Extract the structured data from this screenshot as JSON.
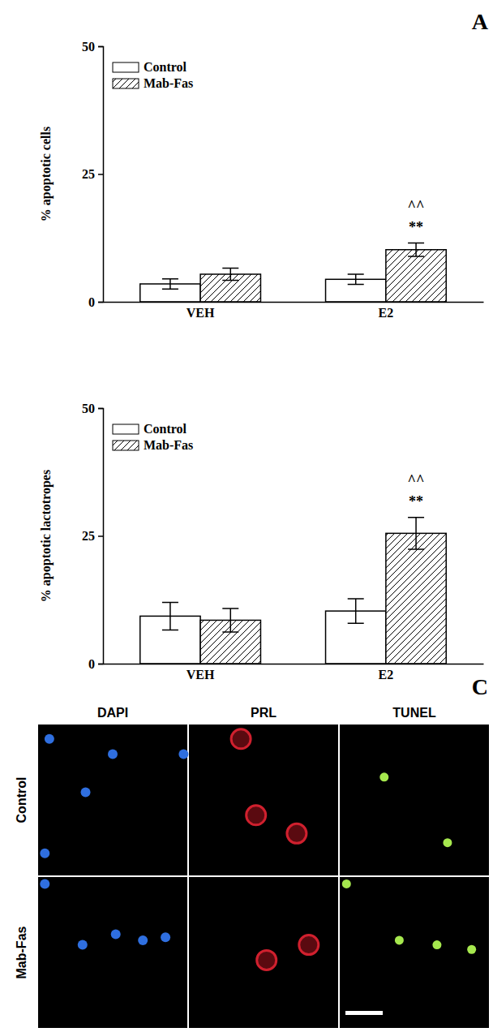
{
  "chart_data": [
    {
      "type": "bar",
      "y_label": "% apoptotic cells",
      "categories": [
        "VEH",
        "E2"
      ],
      "ylim": [
        0,
        50
      ],
      "yticks": [
        0,
        25,
        50
      ],
      "legend": "upper left",
      "series": [
        {
          "name": "Control",
          "color": "#ffffff",
          "values": [
            3.5,
            4.4
          ],
          "errors": [
            1.0,
            1.0
          ]
        },
        {
          "name": "Mab-Fas",
          "color": "#ffffff",
          "values": [
            5.4,
            10.2
          ],
          "errors": [
            1.2,
            1.3
          ]
        }
      ],
      "annotations": [
        {
          "category": "E2",
          "series": "Mab-Fas",
          "texts": [
            "^^",
            "**"
          ]
        }
      ]
    },
    {
      "type": "bar",
      "y_label": "% apoptotic lactotropes",
      "categories": [
        "VEH",
        "E2"
      ],
      "ylim": [
        0,
        50
      ],
      "yticks": [
        0,
        25,
        50
      ],
      "legend": "upper left",
      "series": [
        {
          "name": "Control",
          "color": "#ffffff",
          "values": [
            9.3,
            10.3
          ],
          "errors": [
            2.7,
            2.4
          ]
        },
        {
          "name": "Mab-Fas",
          "color": "#ffffff",
          "values": [
            8.5,
            25.5
          ],
          "errors": [
            2.3,
            3.1
          ]
        }
      ],
      "annotations": [
        {
          "category": "E2",
          "series": "Mab-Fas",
          "texts": [
            "^^",
            "**"
          ]
        }
      ]
    }
  ],
  "panel_letters": [
    "A",
    "C"
  ],
  "micrograph": {
    "columns": [
      "DAPI",
      "PRL",
      "TUNEL"
    ],
    "rows": [
      "Control",
      "Mab-Fas"
    ]
  }
}
